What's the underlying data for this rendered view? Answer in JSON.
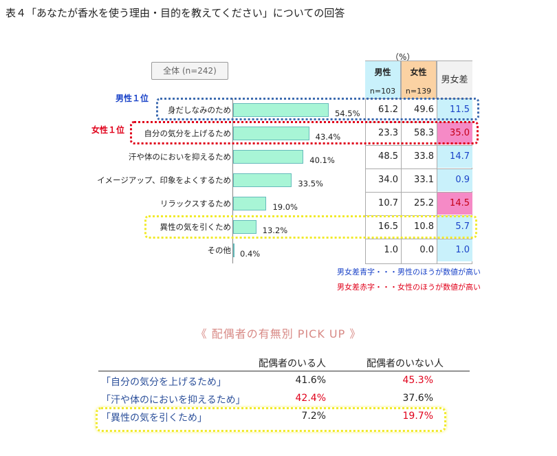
{
  "title": "表４「あなたが香水を使う理由・目的を教えてください」についての回答",
  "unit": "（%）",
  "total_label": "全体 (n=242)",
  "headers": {
    "male": "男性",
    "male_n": "n=103",
    "female": "女性",
    "female_n": "n=139",
    "diff": "男女差"
  },
  "rank_labels": {
    "male": "男性１位",
    "female": "女性１位"
  },
  "notes": {
    "blue": "男女差青字・・・男性のほうが数値が高い",
    "red": "男女差赤字・・・女性のほうが数値が高い"
  },
  "colors": {
    "bar": "#a8f5d6",
    "male_header": "#c9f1fb",
    "female_header": "#fbd2a3",
    "diff_male": "#c9f1fb",
    "diff_female": "#f58ac6"
  },
  "chart_data": {
    "type": "bar",
    "orientation": "horizontal",
    "categories": [
      "身だしなみのため",
      "自分の気分を上げるため",
      "汗や体のにおいを抑えるため",
      "イメージアップ、印象をよくするため",
      "リラックスするため",
      "異性の気を引くため",
      "その他"
    ],
    "values": [
      54.5,
      43.4,
      40.1,
      33.5,
      19.0,
      13.2,
      0.4
    ],
    "value_labels": [
      "54.5%",
      "43.4%",
      "40.1%",
      "33.5%",
      "19.0%",
      "13.2%",
      "0.4%"
    ],
    "xlim": [
      0,
      100
    ],
    "table": {
      "male": [
        "61.2",
        "23.3",
        "48.5",
        "34.0",
        "10.7",
        "16.5",
        "1.0"
      ],
      "female": [
        "49.6",
        "58.3",
        "33.8",
        "33.1",
        "25.2",
        "10.8",
        "0.0"
      ],
      "diff": [
        "11.5",
        "35.0",
        "14.7",
        "0.9",
        "14.5",
        "5.7",
        "1.0"
      ],
      "diff_higher": [
        "male",
        "female",
        "male",
        "male",
        "female",
        "male",
        "male"
      ]
    }
  },
  "pickup": {
    "title": "《 配偶者の有無別 PICK UP 》",
    "col_with": "配偶者のいる人",
    "col_without": "配偶者のいない人",
    "rows": [
      {
        "label": "「自分の気分を上げるため」",
        "with": "41.6%",
        "without": "45.3%",
        "with_red": false,
        "without_red": true
      },
      {
        "label": "「汗や体のにおいを抑えるため」",
        "with": "42.4%",
        "without": "37.6%",
        "with_red": true,
        "without_red": false
      },
      {
        "label": "「異性の気を引くため」",
        "with": "7.2%",
        "without": "19.7%",
        "with_red": false,
        "without_red": true
      }
    ]
  }
}
